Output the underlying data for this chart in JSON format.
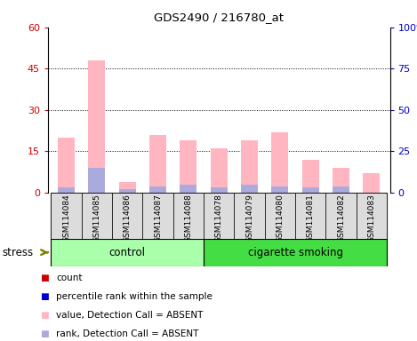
{
  "title": "GDS2490 / 216780_at",
  "samples": [
    "GSM114084",
    "GSM114085",
    "GSM114086",
    "GSM114087",
    "GSM114088",
    "GSM114078",
    "GSM114079",
    "GSM114080",
    "GSM114081",
    "GSM114082",
    "GSM114083"
  ],
  "pink_values": [
    20,
    48,
    4,
    21,
    19,
    16,
    19,
    22,
    12,
    9,
    7
  ],
  "blue_rank": [
    3,
    15,
    2,
    4,
    5,
    3,
    5,
    4,
    3,
    4,
    0
  ],
  "ylim_left": [
    0,
    60
  ],
  "ylim_right": [
    0,
    100
  ],
  "yticks_left": [
    0,
    15,
    30,
    45,
    60
  ],
  "yticks_right": [
    0,
    25,
    50,
    75,
    100
  ],
  "yticklabels_right": [
    "0",
    "25",
    "50",
    "75",
    "100%"
  ],
  "grid_values": [
    15,
    30,
    45
  ],
  "left_color": "#CC0000",
  "right_color": "#0000CC",
  "pink_color": "#FFB6C1",
  "lightblue_color": "#AAAADD",
  "bg_color": "#DCDCDC",
  "ctrl_color": "#AAFFAA",
  "cig_color": "#44DD44",
  "ctrl_label": "control",
  "cig_label": "cigarette smoking",
  "stress_label": "stress",
  "legend_items": [
    {
      "color": "#CC0000",
      "label": "count"
    },
    {
      "color": "#0000CC",
      "label": "percentile rank within the sample"
    },
    {
      "color": "#FFB6C1",
      "label": "value, Detection Call = ABSENT"
    },
    {
      "color": "#AAAADD",
      "label": "rank, Detection Call = ABSENT"
    }
  ],
  "n_control": 5,
  "bar_width": 0.55
}
